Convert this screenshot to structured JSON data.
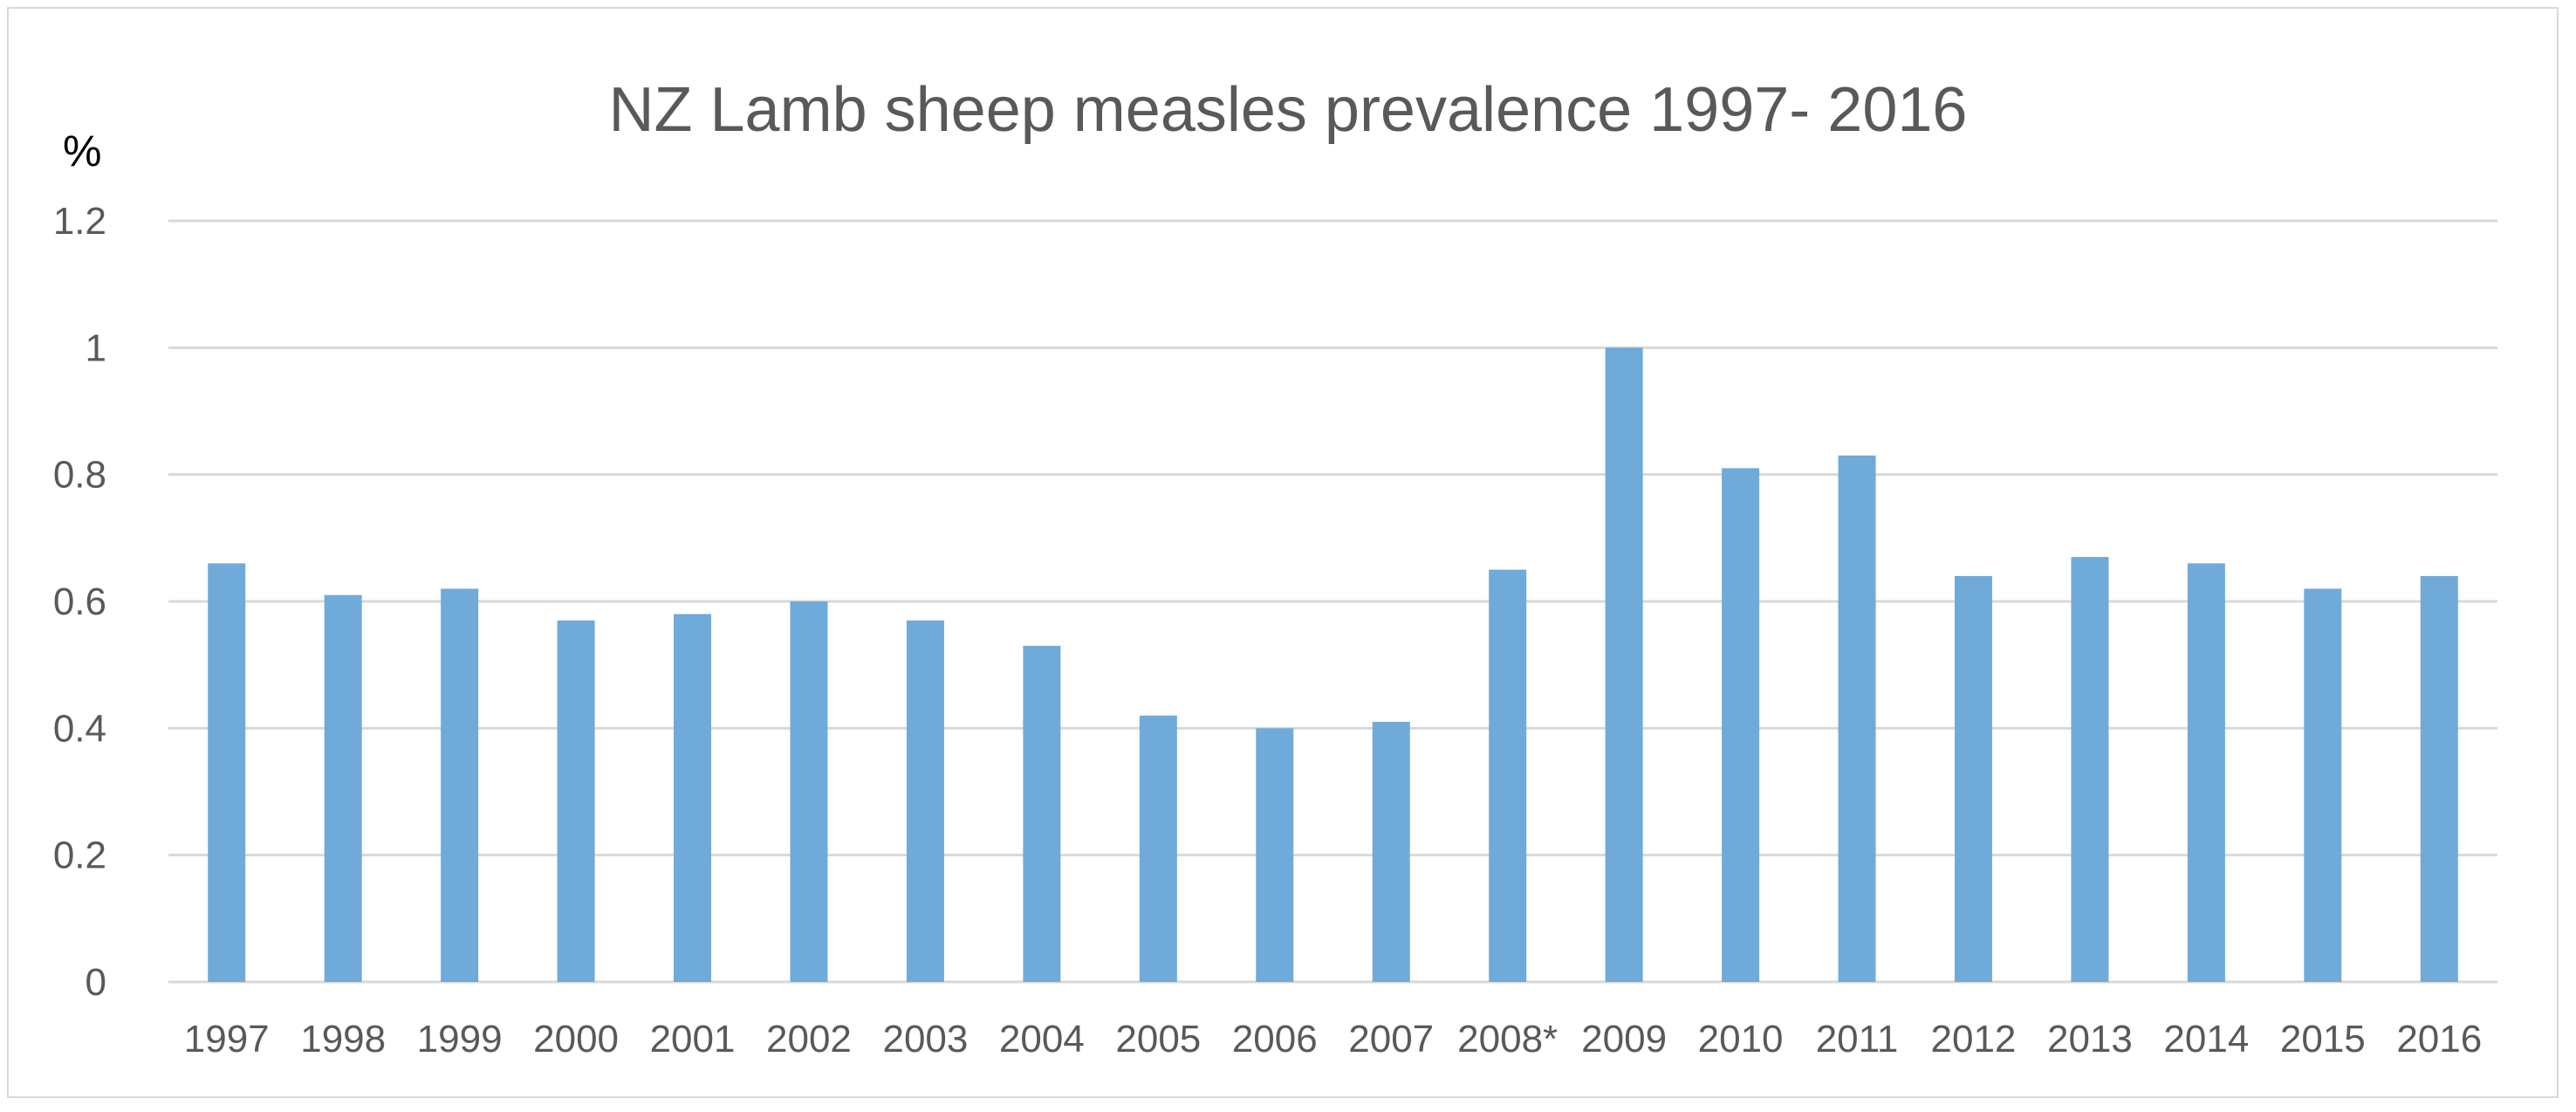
{
  "chart_data": {
    "type": "bar",
    "title": "NZ Lamb sheep measles prevalence   1997- 2016",
    "ylabel": "%",
    "xlabel": "",
    "ylim": [
      0,
      1.2
    ],
    "yticks": [
      "0",
      "0.2",
      "0.4",
      "0.6",
      "0.8",
      "1",
      "1.2"
    ],
    "ytick_values": [
      0,
      0.2,
      0.4,
      0.6,
      0.8,
      1,
      1.2
    ],
    "grid": true,
    "legend": "none",
    "bar_color": "#70aad9",
    "categories": [
      "1997",
      "1998",
      "1999",
      "2000",
      "2001",
      "2002",
      "2003",
      "2004",
      "2005",
      "2006",
      "2007",
      "2008*",
      "2009",
      "2010",
      "2011",
      "2012",
      "2013",
      "2014",
      "2015",
      "2016"
    ],
    "values": [
      0.66,
      0.61,
      0.62,
      0.57,
      0.58,
      0.6,
      0.57,
      0.53,
      0.42,
      0.4,
      0.41,
      0.65,
      1.0,
      0.81,
      0.83,
      0.64,
      0.67,
      0.66,
      0.62,
      0.64
    ]
  }
}
